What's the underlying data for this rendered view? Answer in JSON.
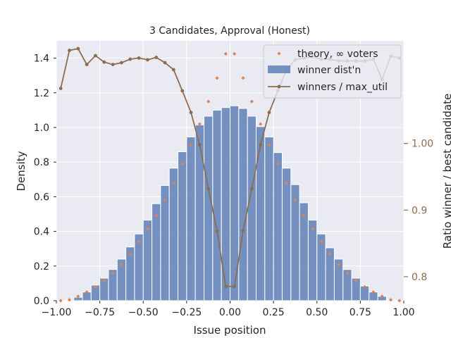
{
  "chart_data": {
    "type": "bar",
    "title": "3 Candidates, Approval (Honest)",
    "xlabel": "Issue position",
    "ylabel": "Density",
    "y2label": "Ratio winner / best candidate",
    "xlim": [
      -1.0,
      1.0
    ],
    "ylim": [
      0.0,
      1.5
    ],
    "y2lim": [
      0.764,
      1.154
    ],
    "grid": true,
    "legend_position": "top-right",
    "x_ticks": [
      "−1.00",
      "−0.75",
      "−0.50",
      "−0.25",
      "0.00",
      "0.25",
      "0.50",
      "0.75",
      "1.00"
    ],
    "x_tick_values": [
      -1.0,
      -0.75,
      -0.5,
      -0.25,
      0.0,
      0.25,
      0.5,
      0.75,
      1.0
    ],
    "y_ticks": [
      "0.0",
      "0.2",
      "0.4",
      "0.6",
      "0.8",
      "1.0",
      "1.2",
      "1.4"
    ],
    "y_tick_values": [
      0.0,
      0.2,
      0.4,
      0.6,
      0.8,
      1.0,
      1.2,
      1.4
    ],
    "y2_ticks": [
      "0.8",
      "0.9",
      "1.00"
    ],
    "y2_tick_values": [
      0.8,
      0.9,
      1.0
    ],
    "colors": {
      "histogram": "#4c72b0",
      "theory": "#dd8452",
      "ratio_line": "#8c6d4f",
      "axes_bg": "#eaeaf2",
      "grid": "#ffffff",
      "y2_axis": "#8c6d4f"
    },
    "series": [
      {
        "name": "winner dist'n",
        "kind": "histogram",
        "bin_width": 0.05,
        "bin_centers": [
          -0.975,
          -0.925,
          -0.875,
          -0.825,
          -0.775,
          -0.725,
          -0.675,
          -0.625,
          -0.575,
          -0.525,
          -0.475,
          -0.425,
          -0.375,
          -0.325,
          -0.275,
          -0.225,
          -0.175,
          -0.125,
          -0.075,
          -0.025,
          0.025,
          0.075,
          0.125,
          0.175,
          0.225,
          0.275,
          0.325,
          0.375,
          0.425,
          0.475,
          0.525,
          0.575,
          0.625,
          0.675,
          0.725,
          0.775,
          0.825,
          0.875,
          0.925,
          0.975
        ],
        "values": [
          0.0,
          0.005,
          0.02,
          0.05,
          0.09,
          0.13,
          0.18,
          0.24,
          0.31,
          0.385,
          0.465,
          0.56,
          0.665,
          0.765,
          0.86,
          0.945,
          1.015,
          1.065,
          1.1,
          1.115,
          1.125,
          1.11,
          1.065,
          1.005,
          0.945,
          0.855,
          0.765,
          0.67,
          0.565,
          0.465,
          0.385,
          0.305,
          0.24,
          0.18,
          0.13,
          0.085,
          0.05,
          0.025,
          0.005,
          0.0
        ]
      },
      {
        "name": "theory, ∞ voters",
        "kind": "scatter",
        "x": [
          -0.975,
          -0.925,
          -0.875,
          -0.825,
          -0.775,
          -0.725,
          -0.675,
          -0.625,
          -0.575,
          -0.525,
          -0.475,
          -0.425,
          -0.375,
          -0.325,
          -0.275,
          -0.225,
          -0.175,
          -0.125,
          -0.075,
          -0.025,
          0.025,
          0.075,
          0.125,
          0.175,
          0.225,
          0.275,
          0.325,
          0.375,
          0.425,
          0.475,
          0.525,
          0.575,
          0.625,
          0.675,
          0.725,
          0.775,
          0.825,
          0.875,
          0.925,
          0.975
        ],
        "y": [
          0.0,
          0.005,
          0.025,
          0.05,
          0.08,
          0.115,
          0.16,
          0.21,
          0.27,
          0.34,
          0.415,
          0.49,
          0.58,
          0.68,
          0.79,
          0.9,
          1.02,
          1.15,
          1.285,
          1.425,
          1.425,
          1.285,
          1.15,
          1.02,
          0.9,
          0.79,
          0.68,
          0.58,
          0.49,
          0.415,
          0.34,
          0.27,
          0.21,
          0.16,
          0.115,
          0.08,
          0.05,
          0.025,
          0.005,
          0.0
        ]
      },
      {
        "name": "winners / max_util",
        "kind": "line",
        "axis": "right",
        "x": [
          -0.975,
          -0.925,
          -0.875,
          -0.825,
          -0.775,
          -0.725,
          -0.675,
          -0.625,
          -0.575,
          -0.525,
          -0.475,
          -0.425,
          -0.375,
          -0.325,
          -0.275,
          -0.225,
          -0.175,
          -0.125,
          -0.075,
          -0.025,
          0.025,
          0.075,
          0.125,
          0.175,
          0.225,
          0.275,
          0.325,
          0.375,
          0.425,
          0.475,
          0.525,
          0.575,
          0.625,
          0.675,
          0.725,
          0.775,
          0.825,
          0.875,
          0.925,
          0.975
        ],
        "y": [
          1.0826,
          1.1397,
          1.1423,
          1.1185,
          1.1318,
          1.1221,
          1.1185,
          1.1212,
          1.1265,
          1.1282,
          1.1256,
          1.1291,
          1.1212,
          1.1106,
          1.0791,
          1.0465,
          0.9979,
          0.932,
          0.8688,
          0.7854,
          0.7854,
          0.8688,
          0.932,
          0.9979,
          1.0465,
          1.0791,
          1.1106,
          1.1256,
          1.1282,
          1.13,
          1.1265,
          1.1265,
          1.1238,
          1.1238,
          1.1238,
          1.1238,
          1.1265,
          1.0959,
          1.1309,
          1.1282
        ]
      }
    ]
  }
}
